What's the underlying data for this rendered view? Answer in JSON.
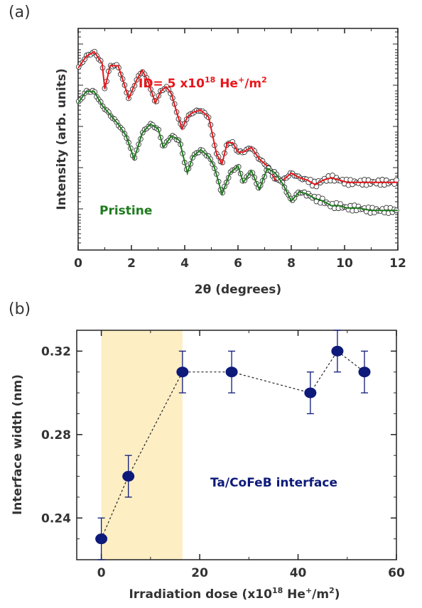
{
  "chart_data": [
    {
      "panel": "(a)",
      "type": "line",
      "xlabel": "2θ (degrees)",
      "ylabel": "Intensity (arb. units)",
      "xlim": [
        0,
        12
      ],
      "xticks": [
        "0",
        "2",
        "4",
        "6",
        "8",
        "10",
        "12"
      ],
      "annotations": [
        {
          "text": "ID= 5 x10",
          "sup1": "18",
          "text2": " He",
          "sup2": "+",
          "text3": "/m",
          "sup3": "2",
          "color": "#e8161b"
        },
        {
          "text": "Pristine",
          "color": "#1e7b1e"
        }
      ],
      "series": [
        {
          "label_ref": "ID",
          "color": "#e8161b",
          "marker": "circle-open",
          "x": [
            0.0,
            0.3,
            0.6,
            0.9,
            1.0,
            1.2,
            1.5,
            1.7,
            1.9,
            2.2,
            2.4,
            2.6,
            2.9,
            3.1,
            3.3,
            3.5,
            3.7,
            3.9,
            4.1,
            4.3,
            4.6,
            4.9,
            5.2,
            5.4,
            5.6,
            5.8,
            6.0,
            6.2,
            6.5,
            6.8,
            7.1,
            7.4,
            7.7,
            8.0,
            8.3,
            8.6,
            8.9,
            9.2,
            9.5,
            9.8,
            10.1,
            10.5,
            11.0,
            11.5,
            12.0
          ],
          "y": [
            7.8,
            8.3,
            8.5,
            8.0,
            6.9,
            7.9,
            7.9,
            7.2,
            6.5,
            7.3,
            7.7,
            7.3,
            6.3,
            6.8,
            7.0,
            6.7,
            5.9,
            5.2,
            5.7,
            5.9,
            6.0,
            5.7,
            4.1,
            3.7,
            4.6,
            4.6,
            4.2,
            4.2,
            4.4,
            3.9,
            3.6,
            3.0,
            3.0,
            3.3,
            3.1,
            3.0,
            2.8,
            3.0,
            3.1,
            3.0,
            2.9,
            2.9,
            2.9,
            2.9,
            2.9
          ]
        },
        {
          "label_ref": "Pristine",
          "color": "#1e7b1e",
          "marker": "circle-open",
          "x": [
            0.0,
            0.3,
            0.6,
            0.9,
            1.2,
            1.5,
            1.8,
            2.1,
            2.4,
            2.7,
            3.0,
            3.2,
            3.5,
            3.8,
            4.1,
            4.3,
            4.6,
            4.9,
            5.1,
            5.4,
            5.7,
            6.0,
            6.2,
            6.5,
            6.8,
            7.1,
            7.4,
            7.7,
            8.0,
            8.3,
            8.6,
            8.9,
            9.2,
            9.5,
            9.8,
            10.1,
            10.5,
            11.0,
            11.5,
            12.0
          ],
          "y": [
            6.3,
            6.8,
            6.8,
            6.2,
            5.8,
            5.4,
            4.9,
            3.9,
            5.0,
            5.4,
            5.2,
            4.4,
            4.9,
            4.7,
            3.3,
            4.0,
            4.3,
            4.0,
            3.6,
            2.4,
            3.3,
            3.6,
            2.9,
            3.4,
            2.6,
            3.5,
            3.3,
            2.8,
            2.1,
            2.5,
            2.4,
            2.2,
            2.1,
            1.9,
            1.9,
            1.8,
            1.8,
            1.7,
            1.7,
            1.7
          ]
        }
      ]
    },
    {
      "panel": "(b)",
      "type": "scatter",
      "xlabel": "Irradiation dose (x10",
      "xlabel_sup": "18",
      "xlabel_mid": " He",
      "xlabel_sup2": "+",
      "xlabel_end": "/m",
      "xlabel_sup3": "2",
      "xlabel_close": ")",
      "ylabel": "Interface width (nm)",
      "xlim": [
        -5,
        60
      ],
      "ylim": [
        0.22,
        0.33
      ],
      "xticks": [
        "0",
        "20",
        "40",
        "60"
      ],
      "yticks": [
        "0.24",
        "0.28",
        "0.32"
      ],
      "highlight_region": {
        "x_from": 0,
        "x_to": 16.5,
        "color": "#fdeec4"
      },
      "annotation": {
        "text": "Ta/CoFeB interface",
        "color": "#0d1a7a"
      },
      "series": [
        {
          "color": "#0d1a7a",
          "line": "dashed",
          "x": [
            0,
            5.5,
            16.5,
            26.5,
            42.5,
            48,
            53.5
          ],
          "y": [
            0.23,
            0.26,
            0.31,
            0.31,
            0.3,
            0.32,
            0.31
          ],
          "err": [
            0.01,
            0.01,
            0.01,
            0.01,
            0.01,
            0.01,
            0.01
          ]
        }
      ]
    }
  ]
}
